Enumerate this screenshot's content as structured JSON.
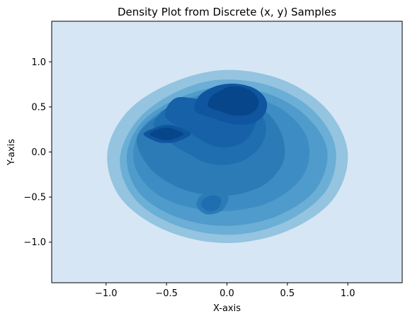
{
  "chart_data": {
    "type": "filled-contour",
    "title": "Density Plot from Discrete (x, y) Samples",
    "xlabel": "X-axis",
    "ylabel": "Y-axis",
    "xlim": [
      -1.45,
      1.45
    ],
    "ylim": [
      -1.45,
      1.45
    ],
    "xticks": [
      -1.0,
      -0.5,
      0.0,
      0.5,
      1.0
    ],
    "xtick_labels": [
      "−1.0",
      "−0.5",
      "0.0",
      "0.5",
      "1.0"
    ],
    "yticks": [
      -1.0,
      -0.5,
      0.0,
      0.5,
      1.0
    ],
    "ytick_labels": [
      "−1.0",
      "−0.5",
      "0.0",
      "0.5",
      "1.0"
    ],
    "grid": false,
    "legend": false,
    "background_color": "#d6e6f4",
    "level_colors": [
      "#94c4df",
      "#6baed6",
      "#4f9bcb",
      "#3d8dc4",
      "#2d7bb6",
      "#1f6eb0",
      "#1661a8",
      "#0f559f",
      "#08468b"
    ],
    "density_peaks": [
      {
        "x": 0.05,
        "y": 0.55,
        "level": 9
      },
      {
        "x": -0.5,
        "y": 0.2,
        "level": 9
      },
      {
        "x": -0.12,
        "y": -0.55,
        "level": 6
      },
      {
        "x": 0.3,
        "y": 0.1,
        "level": 6
      },
      {
        "x": 0.6,
        "y": -0.2,
        "level": 4
      }
    ],
    "support_extent": {
      "xmin": -1.05,
      "xmax": 1.0,
      "ymin": -1.0,
      "ymax": 0.92
    }
  }
}
